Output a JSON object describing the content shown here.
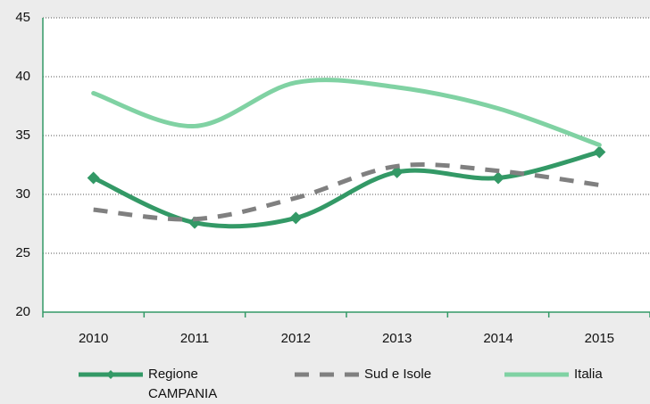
{
  "chart_data": {
    "type": "line",
    "categories": [
      "2010",
      "2011",
      "2012",
      "2013",
      "2014",
      "2015"
    ],
    "series": [
      {
        "name": "Regione CAMPANIA",
        "color": "#339966",
        "style": "solid",
        "marker": "diamond",
        "values": [
          31.4,
          27.6,
          28.0,
          31.9,
          31.4,
          33.6
        ]
      },
      {
        "name": "Sud e Isole",
        "color": "#808080",
        "style": "dashed",
        "values": [
          28.7,
          27.9,
          29.7,
          32.4,
          32.0,
          30.8
        ]
      },
      {
        "name": "Italia",
        "color": "#80d2a3",
        "style": "solid",
        "values": [
          38.6,
          35.8,
          39.5,
          39.1,
          37.3,
          34.2
        ]
      }
    ],
    "ylim": [
      20,
      45
    ],
    "yticks": [
      20,
      25,
      30,
      35,
      40,
      45
    ],
    "grid": true,
    "legend": "bottom"
  }
}
